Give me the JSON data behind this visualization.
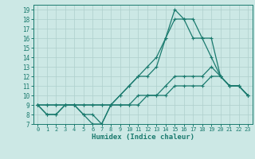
{
  "xlabel": "Humidex (Indice chaleur)",
  "xlim": [
    -0.5,
    23.5
  ],
  "ylim": [
    7,
    19.5
  ],
  "yticks": [
    7,
    8,
    9,
    10,
    11,
    12,
    13,
    14,
    15,
    16,
    17,
    18,
    19
  ],
  "xticks": [
    0,
    1,
    2,
    3,
    4,
    5,
    6,
    7,
    8,
    9,
    10,
    11,
    12,
    13,
    14,
    15,
    16,
    17,
    18,
    19,
    20,
    21,
    22,
    23
  ],
  "bg_color": "#cce8e5",
  "line_color": "#1a7a6e",
  "grid_color": "#aecfcc",
  "lines": [
    [
      9,
      8,
      8,
      9,
      9,
      8,
      7,
      7,
      9,
      10,
      11,
      12,
      13,
      14,
      16,
      19,
      18,
      16,
      16,
      14,
      12,
      11,
      11,
      10
    ],
    [
      9,
      8,
      8,
      9,
      9,
      8,
      8,
      7,
      9,
      10,
      11,
      12,
      12,
      13,
      16,
      18,
      18,
      18,
      16,
      16,
      12,
      11,
      11,
      10
    ],
    [
      9,
      9,
      9,
      9,
      9,
      9,
      9,
      9,
      9,
      9,
      9,
      10,
      10,
      10,
      11,
      12,
      12,
      12,
      12,
      13,
      12,
      11,
      11,
      10
    ],
    [
      9,
      9,
      9,
      9,
      9,
      9,
      9,
      9,
      9,
      9,
      9,
      9,
      10,
      10,
      10,
      11,
      11,
      11,
      11,
      12,
      12,
      11,
      11,
      10
    ]
  ]
}
